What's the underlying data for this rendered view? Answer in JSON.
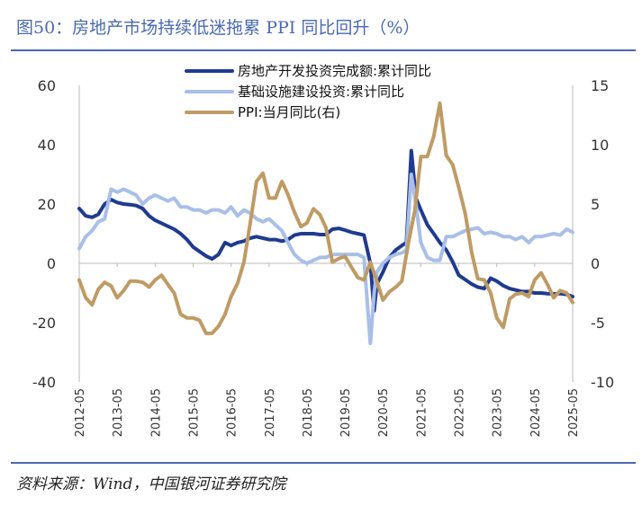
{
  "title": "图50：房地产市场持续低迷拖累 PPI 同比回升（%）",
  "source": "资料来源：Wind，中国银河证券研究院",
  "chart_data": {
    "type": "line",
    "yleft_ticks": [
      "60",
      "40",
      "20",
      "0",
      "-20",
      "-40"
    ],
    "yright_ticks": [
      "15",
      "10",
      "5",
      "0",
      "-5",
      "-10"
    ],
    "yleft_lim": [
      -40,
      60
    ],
    "yright_lim": [
      -10,
      15
    ],
    "grid": false,
    "legend_position": "top-center",
    "x_ticks": [
      "2012-05",
      "2013-05",
      "2014-05",
      "2015-05",
      "2016-05",
      "2017-05",
      "2018-05",
      "2019-05",
      "2020-05",
      "2021-05",
      "2022-05",
      "2023-05",
      "2024-05",
      "2025-05"
    ],
    "series": [
      {
        "name": "房地产开发投资完成额:累计同比",
        "axis": "left",
        "color": "#1f3b8f",
        "x": [
          2012.33,
          2012.5,
          2012.67,
          2012.83,
          2013.0,
          2013.17,
          2013.33,
          2013.5,
          2013.67,
          2013.83,
          2014.0,
          2014.17,
          2014.33,
          2014.5,
          2014.67,
          2014.83,
          2015.0,
          2015.17,
          2015.33,
          2015.5,
          2015.67,
          2015.83,
          2016.0,
          2016.17,
          2016.33,
          2016.5,
          2016.67,
          2016.83,
          2017.0,
          2017.17,
          2017.33,
          2017.5,
          2017.67,
          2017.83,
          2018.0,
          2018.17,
          2018.33,
          2018.5,
          2018.67,
          2018.83,
          2019.0,
          2019.17,
          2019.33,
          2019.5,
          2019.67,
          2019.83,
          2020.0,
          2020.1,
          2020.17,
          2020.33,
          2020.5,
          2020.67,
          2020.83,
          2020.95,
          2021.08,
          2021.2,
          2021.33,
          2021.5,
          2021.67,
          2021.83,
          2022.0,
          2022.17,
          2022.33,
          2022.5,
          2022.67,
          2022.83,
          2023.0,
          2023.17,
          2023.33,
          2023.5,
          2023.67,
          2023.83,
          2024.0,
          2024.17,
          2024.33,
          2024.5,
          2024.67,
          2024.83,
          2025.0,
          2025.17,
          2025.33
        ],
        "values": [
          18.5,
          16,
          15.5,
          16.5,
          20,
          21.5,
          20.5,
          20,
          19.8,
          19.5,
          18.5,
          16,
          14.5,
          13.5,
          12.5,
          11.5,
          10,
          8,
          5.5,
          4,
          2.5,
          1.5,
          3,
          7,
          6,
          7,
          7.5,
          8.5,
          9,
          8.5,
          8,
          8,
          7.5,
          8,
          9.5,
          10,
          10,
          10,
          9.7,
          9.7,
          11.5,
          11.8,
          11.2,
          10.5,
          10,
          9.5,
          0,
          -16,
          -7,
          -3,
          2,
          4.5,
          6,
          7,
          38,
          22,
          18,
          13,
          10,
          7,
          4.5,
          0.5,
          -4,
          -5.5,
          -7,
          -8,
          -8.5,
          -5,
          -6,
          -7.5,
          -8.5,
          -9,
          -9.5,
          -9.5,
          -10,
          -10,
          -10.2,
          -10.3,
          -10.2,
          -10.5,
          -11.2
        ]
      },
      {
        "name": "基础设施建设投资:累计同比",
        "axis": "left",
        "color": "#a9bfe8",
        "x": [
          2012.33,
          2012.5,
          2012.67,
          2012.83,
          2013.0,
          2013.17,
          2013.33,
          2013.5,
          2013.67,
          2013.83,
          2014.0,
          2014.17,
          2014.33,
          2014.5,
          2014.67,
          2014.83,
          2015.0,
          2015.17,
          2015.33,
          2015.5,
          2015.67,
          2015.83,
          2016.0,
          2016.17,
          2016.33,
          2016.5,
          2016.67,
          2016.83,
          2017.0,
          2017.17,
          2017.33,
          2017.5,
          2017.67,
          2017.83,
          2018.0,
          2018.17,
          2018.33,
          2018.5,
          2018.67,
          2018.83,
          2019.0,
          2019.17,
          2019.33,
          2019.5,
          2019.67,
          2019.83,
          2020.0,
          2020.1,
          2020.17,
          2020.33,
          2020.5,
          2020.67,
          2020.83,
          2020.95,
          2021.08,
          2021.2,
          2021.33,
          2021.5,
          2021.67,
          2021.83,
          2022.0,
          2022.17,
          2022.33,
          2022.5,
          2022.67,
          2022.83,
          2023.0,
          2023.17,
          2023.33,
          2023.5,
          2023.67,
          2023.83,
          2024.0,
          2024.17,
          2024.33,
          2024.5,
          2024.67,
          2024.83,
          2025.0,
          2025.17,
          2025.33
        ],
        "values": [
          5,
          9,
          11,
          14,
          15,
          25,
          24,
          25,
          24,
          23,
          20,
          22,
          23,
          22,
          21,
          22,
          19,
          19,
          18,
          18,
          17,
          18,
          18,
          17,
          19,
          16,
          18,
          17,
          15,
          14,
          15,
          13,
          11,
          7,
          3,
          1,
          0,
          1,
          2,
          2,
          3,
          3,
          3,
          3,
          3,
          2,
          -27,
          -10,
          -3,
          0,
          2,
          3,
          3.5,
          4.5,
          30,
          20,
          7,
          2,
          1,
          1,
          9,
          9,
          10,
          11,
          11.5,
          12,
          10,
          10.5,
          10,
          9,
          9,
          8,
          9,
          7,
          9,
          9,
          9.5,
          10,
          9.5,
          11.5,
          10.5
        ]
      },
      {
        "name": "PPI:当月同比(右)",
        "axis": "right",
        "color": "#bf9b64",
        "x": [
          2012.33,
          2012.5,
          2012.67,
          2012.83,
          2013.0,
          2013.17,
          2013.33,
          2013.5,
          2013.67,
          2013.83,
          2014.0,
          2014.17,
          2014.33,
          2014.5,
          2014.67,
          2014.83,
          2015.0,
          2015.17,
          2015.33,
          2015.5,
          2015.67,
          2015.83,
          2016.0,
          2016.17,
          2016.33,
          2016.5,
          2016.67,
          2016.83,
          2017.0,
          2017.17,
          2017.33,
          2017.5,
          2017.67,
          2017.83,
          2018.0,
          2018.17,
          2018.33,
          2018.5,
          2018.67,
          2018.83,
          2019.0,
          2019.17,
          2019.33,
          2019.5,
          2019.67,
          2019.83,
          2020.0,
          2020.17,
          2020.33,
          2020.5,
          2020.67,
          2020.83,
          2021.0,
          2021.17,
          2021.33,
          2021.5,
          2021.67,
          2021.83,
          2022.0,
          2022.17,
          2022.33,
          2022.5,
          2022.67,
          2022.83,
          2023.0,
          2023.17,
          2023.33,
          2023.5,
          2023.67,
          2023.83,
          2024.0,
          2024.17,
          2024.33,
          2024.5,
          2024.67,
          2024.83,
          2025.0,
          2025.17,
          2025.33
        ],
        "values": [
          -1.4,
          -2.9,
          -3.5,
          -2.2,
          -1.6,
          -1.9,
          -2.9,
          -2.3,
          -1.5,
          -1.5,
          -1.6,
          -2.0,
          -1.4,
          -1.0,
          -1.8,
          -2.5,
          -4.3,
          -4.6,
          -4.6,
          -4.8,
          -5.9,
          -5.9,
          -5.3,
          -4.3,
          -2.8,
          -1.7,
          0.1,
          3.3,
          6.9,
          7.6,
          5.5,
          5.5,
          6.9,
          5.8,
          4.3,
          3.1,
          3.4,
          4.6,
          4.1,
          3.0,
          0.1,
          0.4,
          0.6,
          -0.3,
          -1.2,
          -1.4,
          0.1,
          -1.5,
          -3.1,
          -2.4,
          -2.0,
          -1.5,
          1.7,
          4.4,
          9.0,
          9.0,
          10.7,
          13.5,
          9.1,
          8.3,
          6.4,
          4.2,
          0.9,
          -1.3,
          -1.4,
          -2.5,
          -4.6,
          -5.4,
          -3.0,
          -2.6,
          -2.5,
          -2.8,
          -1.4,
          -0.8,
          -1.8,
          -2.9,
          -2.3,
          -2.5,
          -3.3
        ]
      }
    ]
  }
}
